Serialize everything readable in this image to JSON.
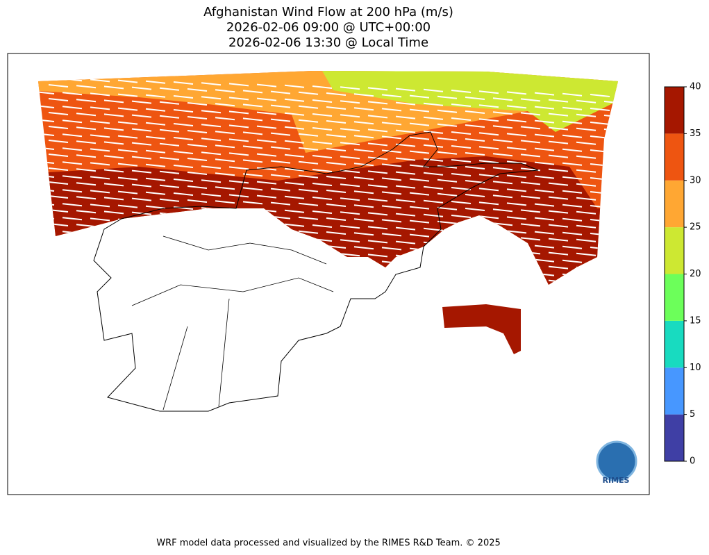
{
  "title": [
    "Afghanistan Wind Flow at 200 hPa (m/s)",
    "2026-02-06 09:00 @ UTC+00:00",
    "2026-02-06 13:30 @ Local Time"
  ],
  "colorbar": {
    "ticks": [
      0,
      5,
      10,
      15,
      20,
      25,
      30,
      35,
      40
    ],
    "colors": [
      "#3f3fa5",
      "#4797ff",
      "#18dbc0",
      "#6cff5a",
      "#cde832",
      "#ffa733",
      "#ee5511",
      "#a51700"
    ]
  },
  "logo": "RIMES",
  "footer": "WRF model data processed and visualized by the RIMES R&D Team. © 2025"
}
